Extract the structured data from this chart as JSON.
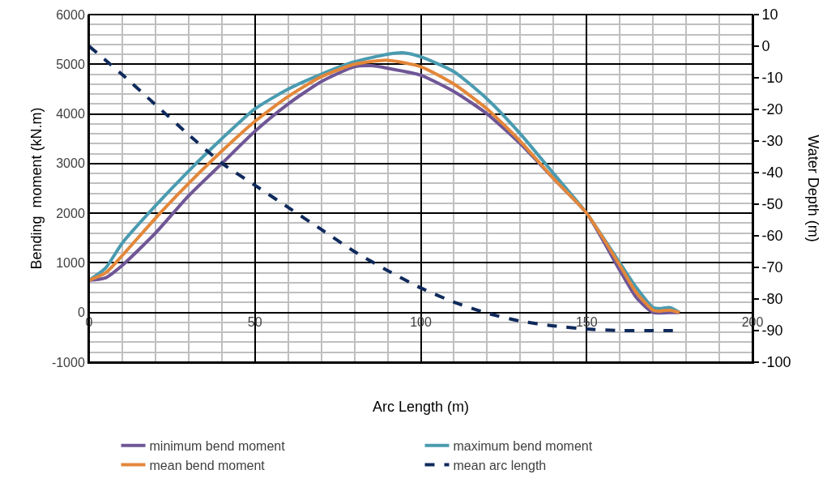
{
  "chart_data": {
    "type": "line",
    "xlabel": "Arc Length (m)",
    "ylabel": "Bending  moment (kN.m)",
    "y2label": "Water Depth (m)",
    "xlim": [
      0,
      200
    ],
    "xticks": [
      0,
      50,
      100,
      150,
      200
    ],
    "ylim": [
      -1000,
      6000
    ],
    "yticks": [
      -1000,
      0,
      1000,
      2000,
      3000,
      4000,
      5000,
      6000
    ],
    "y2lim": [
      -100,
      10
    ],
    "y2ticks": [
      -100,
      -90,
      -80,
      -70,
      -60,
      -50,
      -40,
      -30,
      -20,
      -10,
      0,
      10
    ],
    "grid": true,
    "legend": "bottom",
    "marker": "none",
    "series": [
      {
        "name": "minimum bend moment",
        "color": "#6f5696",
        "x": [
          0,
          5,
          10,
          20,
          30,
          40,
          50,
          60,
          70,
          80,
          85,
          90,
          100,
          110,
          120,
          130,
          140,
          150,
          160,
          165,
          170,
          175,
          178
        ],
        "values": [
          650,
          700,
          950,
          1600,
          2350,
          3000,
          3650,
          4200,
          4650,
          4950,
          4970,
          4920,
          4780,
          4450,
          4000,
          3400,
          2700,
          2000,
          850,
          300,
          0,
          0,
          0
        ]
      },
      {
        "name": "maximum bend moment",
        "color": "#4a9bb0",
        "x": [
          0,
          5,
          10,
          20,
          30,
          40,
          50,
          60,
          70,
          80,
          90,
          95,
          100,
          110,
          120,
          130,
          140,
          150,
          160,
          165,
          170,
          172,
          175,
          178
        ],
        "values": [
          650,
          900,
          1400,
          2150,
          2850,
          3500,
          4100,
          4500,
          4800,
          5050,
          5200,
          5230,
          5150,
          4850,
          4300,
          3600,
          2800,
          2000,
          1000,
          500,
          100,
          80,
          100,
          0
        ]
      },
      {
        "name": "mean bend moment",
        "color": "#e3873a",
        "x": [
          0,
          5,
          10,
          20,
          30,
          40,
          50,
          60,
          70,
          80,
          90,
          100,
          110,
          120,
          130,
          140,
          150,
          160,
          165,
          170,
          172,
          175,
          178
        ],
        "values": [
          650,
          800,
          1150,
          1900,
          2600,
          3250,
          3850,
          4350,
          4750,
          5000,
          5080,
          4950,
          4600,
          4100,
          3450,
          2700,
          2000,
          950,
          400,
          50,
          30,
          50,
          0
        ]
      },
      {
        "name": "mean arc length",
        "color": "#0f2a5c",
        "axis": "y2",
        "line_style": "dashed",
        "x": [
          0,
          10,
          20,
          30,
          40,
          50,
          60,
          70,
          80,
          90,
          100,
          110,
          120,
          130,
          140,
          150,
          160,
          170,
          176
        ],
        "values": [
          0,
          -9,
          -18.5,
          -28,
          -37,
          -44,
          -51,
          -58,
          -65,
          -71,
          -76.5,
          -81,
          -84.5,
          -87,
          -88.5,
          -89.5,
          -90,
          -90,
          -90
        ]
      }
    ]
  }
}
